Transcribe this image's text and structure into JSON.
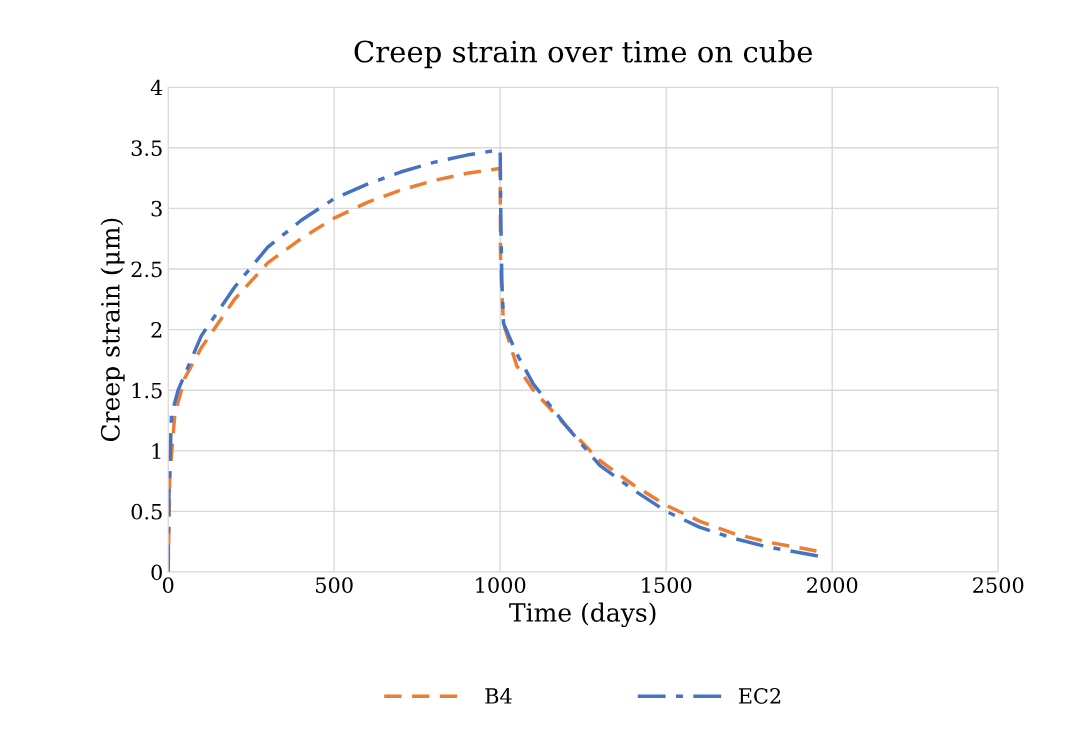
{
  "chart_data": {
    "type": "line",
    "title": "Creep strain over time on cube",
    "xlabel": "Time (days)",
    "ylabel": "Creep strain (μm)",
    "xlim": [
      0,
      2500
    ],
    "xticks": [
      0,
      500,
      1000,
      1500,
      2000,
      2500
    ],
    "ylim": [
      0,
      4
    ],
    "yticks": [
      0,
      0.5,
      1,
      1.5,
      2,
      2.5,
      3,
      3.5,
      4
    ],
    "grid": true,
    "legend": "bottom",
    "marker": "none",
    "series": [
      {
        "name": "B4",
        "color": "#ed7d31",
        "line_style": "dashed",
        "x": [
          0,
          5,
          20,
          50,
          100,
          200,
          300,
          400,
          500,
          600,
          700,
          800,
          900,
          1000,
          1001,
          1005,
          1010,
          1050,
          1100,
          1200,
          1300,
          1400,
          1500,
          1600,
          1700,
          1800,
          1960
        ],
        "values": [
          0,
          0.8,
          1.3,
          1.6,
          1.85,
          2.25,
          2.55,
          2.75,
          2.92,
          3.05,
          3.15,
          3.23,
          3.29,
          3.33,
          2.6,
          2.3,
          2.05,
          1.7,
          1.5,
          1.2,
          0.92,
          0.72,
          0.55,
          0.42,
          0.32,
          0.25,
          0.17
        ]
      },
      {
        "name": "EC2",
        "color": "#4472c4",
        "line_style": "dashdot",
        "x": [
          0,
          2,
          10,
          30,
          100,
          200,
          300,
          400,
          500,
          600,
          700,
          800,
          900,
          990,
          1000,
          1002,
          1005,
          1010,
          1050,
          1100,
          1200,
          1300,
          1400,
          1500,
          1600,
          1700,
          1800,
          1960
        ],
        "values": [
          0,
          0.6,
          1.3,
          1.5,
          1.95,
          2.35,
          2.68,
          2.9,
          3.08,
          3.2,
          3.3,
          3.38,
          3.44,
          3.48,
          3.48,
          2.9,
          2.4,
          2.05,
          1.8,
          1.55,
          1.2,
          0.88,
          0.68,
          0.5,
          0.37,
          0.28,
          0.21,
          0.13
        ]
      }
    ]
  }
}
